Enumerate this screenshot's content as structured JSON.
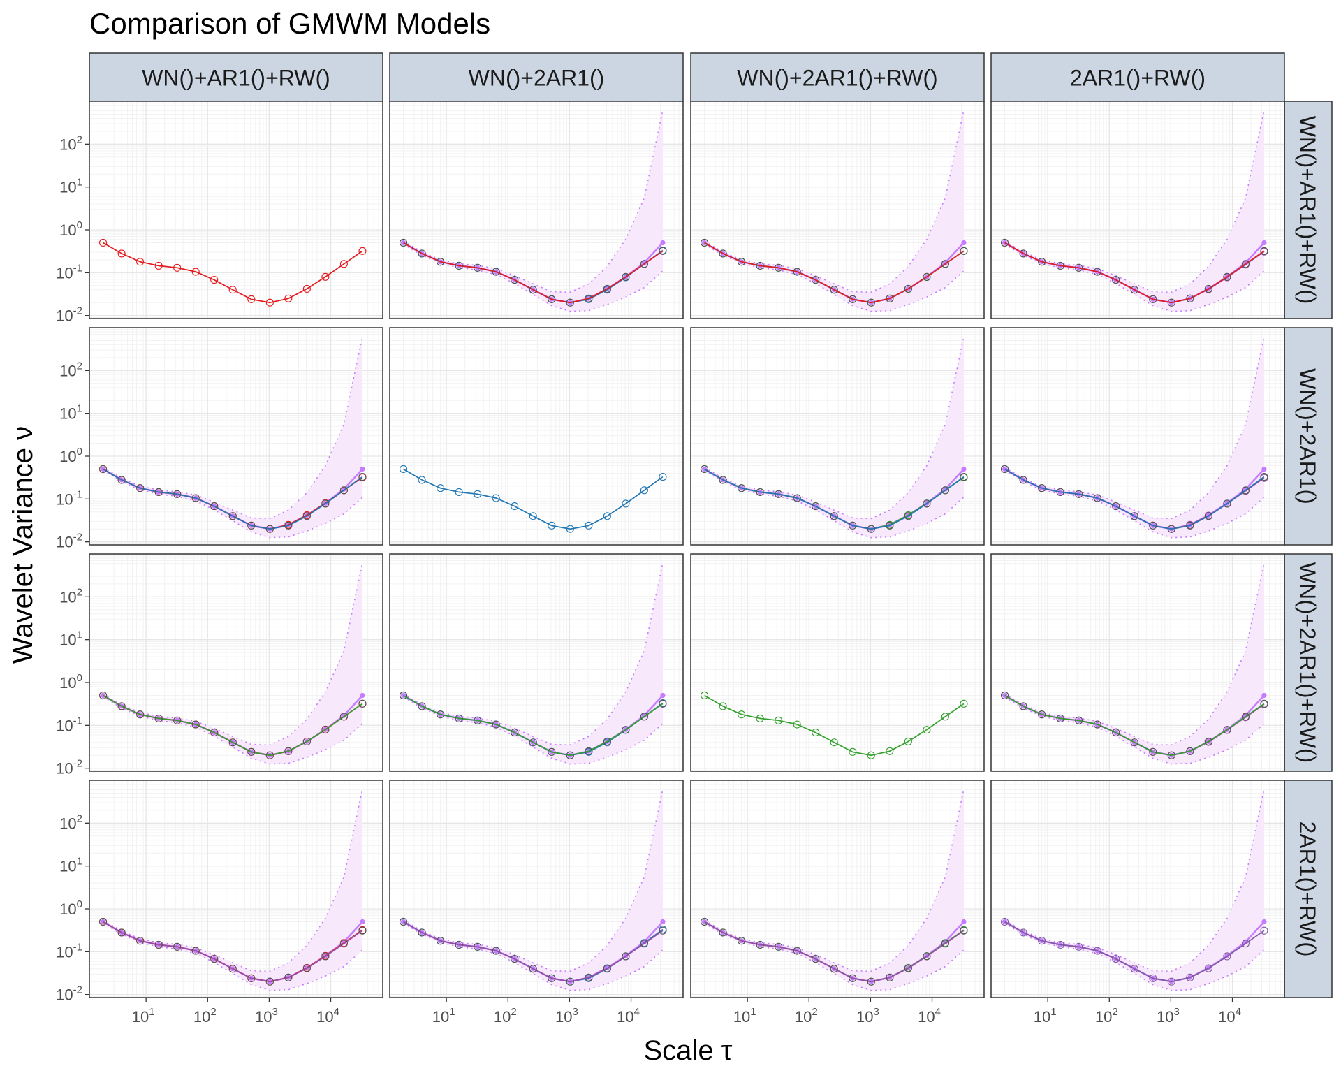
{
  "title": "Comparison of GMWM Models",
  "xlabel": "Scale τ",
  "ylabel": "Wavelet Variance ν",
  "colors": {
    "empirical": "#c77cff",
    "ci_fill": "#f7e8fc",
    "grid_major": "#e6e6e6",
    "grid_minor": "#f2f2f2",
    "strip_fill": "#ccd6e3",
    "panel_border": "#333333",
    "models": [
      "#e41a1c",
      "#2077b4",
      "#33a02c",
      "#984ea3"
    ]
  },
  "chart_data": {
    "type": "line",
    "scale": "log-log",
    "grid": true,
    "legend": "none",
    "col_labels": [
      "WN()+AR1()+RW()",
      "WN()+2AR1()",
      "WN()+2AR1()+RW()",
      "2AR1()+RW()"
    ],
    "row_labels": [
      "WN()+AR1()+RW()",
      "WN()+2AR1()",
      "WN()+2AR1()+RW()",
      "2AR1()+RW()"
    ],
    "xlim": [
      1.2,
      70000
    ],
    "ylim": [
      0.0085,
      1000
    ],
    "x_ticks": [
      {
        "base": "10",
        "exp": "1",
        "value": 10
      },
      {
        "base": "10",
        "exp": "2",
        "value": 100
      },
      {
        "base": "10",
        "exp": "3",
        "value": 1000
      },
      {
        "base": "10",
        "exp": "4",
        "value": 10000
      }
    ],
    "y_ticks": [
      {
        "base": "10",
        "exp": "-2",
        "value": 0.01
      },
      {
        "base": "10",
        "exp": "-1",
        "value": 0.1
      },
      {
        "base": "10",
        "exp": "0",
        "value": 1
      },
      {
        "base": "10",
        "exp": "1",
        "value": 10
      },
      {
        "base": "10",
        "exp": "2",
        "value": 100
      }
    ],
    "x": [
      2,
      4,
      8,
      16,
      32,
      64,
      128,
      256,
      512,
      1024,
      2048,
      4096,
      8192,
      16384,
      32768
    ],
    "empirical": [
      0.5,
      0.28,
      0.18,
      0.145,
      0.13,
      0.105,
      0.068,
      0.04,
      0.024,
      0.02,
      0.025,
      0.042,
      0.08,
      0.17,
      0.5
    ],
    "ci_lower": [
      0.46,
      0.255,
      0.163,
      0.13,
      0.115,
      0.09,
      0.056,
      0.031,
      0.017,
      0.0125,
      0.013,
      0.018,
      0.027,
      0.045,
      0.11
    ],
    "ci_upper": [
      0.54,
      0.305,
      0.2,
      0.162,
      0.148,
      0.124,
      0.085,
      0.055,
      0.036,
      0.035,
      0.055,
      0.14,
      0.6,
      5.5,
      620
    ],
    "model_fits": [
      [
        0.5,
        0.28,
        0.18,
        0.145,
        0.13,
        0.105,
        0.068,
        0.04,
        0.024,
        0.02,
        0.025,
        0.042,
        0.08,
        0.16,
        0.32
      ],
      [
        0.5,
        0.28,
        0.18,
        0.145,
        0.13,
        0.105,
        0.068,
        0.04,
        0.024,
        0.02,
        0.024,
        0.04,
        0.078,
        0.16,
        0.33
      ],
      [
        0.5,
        0.28,
        0.18,
        0.145,
        0.13,
        0.105,
        0.068,
        0.04,
        0.024,
        0.02,
        0.025,
        0.042,
        0.079,
        0.16,
        0.32
      ],
      [
        0.5,
        0.28,
        0.18,
        0.145,
        0.13,
        0.105,
        0.068,
        0.04,
        0.024,
        0.02,
        0.025,
        0.041,
        0.078,
        0.155,
        0.31
      ]
    ]
  }
}
